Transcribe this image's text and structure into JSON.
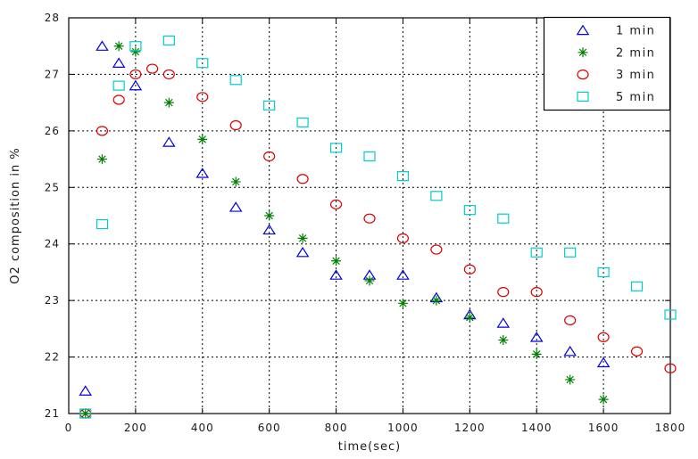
{
  "figure": {
    "background": "#ffffff",
    "border_color": "#000000",
    "grid_style": "dotted",
    "text_color": "#1a1a1a"
  },
  "chart_data": {
    "type": "scatter",
    "title": "",
    "xlabel": "time(sec)",
    "ylabel": "O2 composition in %",
    "xlim": [
      0,
      1800
    ],
    "ylim": [
      21,
      28
    ],
    "xticks": [
      0,
      200,
      400,
      600,
      800,
      1000,
      1200,
      1400,
      1600,
      1800
    ],
    "yticks": [
      21,
      22,
      23,
      24,
      25,
      26,
      27,
      28
    ],
    "grid": true,
    "legend": {
      "position": "top-right",
      "entries": [
        "1 min",
        "2 min",
        "3 min",
        "5 min"
      ]
    },
    "series": [
      {
        "name": "1 min",
        "marker": "triangle",
        "color": "#0000dd",
        "points": [
          [
            50,
            21.4
          ],
          [
            100,
            27.5
          ],
          [
            150,
            27.2
          ],
          [
            200,
            26.8
          ],
          [
            300,
            25.8
          ],
          [
            400,
            25.25
          ],
          [
            500,
            24.65
          ],
          [
            600,
            24.25
          ],
          [
            700,
            23.85
          ],
          [
            800,
            23.45
          ],
          [
            900,
            23.45
          ],
          [
            1000,
            23.45
          ],
          [
            1100,
            23.05
          ],
          [
            1200,
            22.75
          ],
          [
            1300,
            22.6
          ],
          [
            1400,
            22.35
          ],
          [
            1500,
            22.1
          ],
          [
            1600,
            21.9
          ]
        ]
      },
      {
        "name": "2 min",
        "marker": "asterisk",
        "color": "#008000",
        "points": [
          [
            50,
            21.0
          ],
          [
            100,
            25.5
          ],
          [
            150,
            27.5
          ],
          [
            200,
            27.4
          ],
          [
            300,
            26.5
          ],
          [
            400,
            25.85
          ],
          [
            500,
            25.1
          ],
          [
            600,
            24.5
          ],
          [
            700,
            24.1
          ],
          [
            800,
            23.7
          ],
          [
            900,
            23.35
          ],
          [
            1000,
            22.95
          ],
          [
            1100,
            23.0
          ],
          [
            1200,
            22.7
          ],
          [
            1300,
            22.3
          ],
          [
            1400,
            22.05
          ],
          [
            1500,
            21.6
          ],
          [
            1600,
            21.25
          ]
        ]
      },
      {
        "name": "3 min",
        "marker": "circle",
        "color": "#dd0000",
        "points": [
          [
            50,
            21.0
          ],
          [
            100,
            26.0
          ],
          [
            150,
            26.55
          ],
          [
            200,
            27.0
          ],
          [
            250,
            27.1
          ],
          [
            300,
            27.0
          ],
          [
            400,
            26.6
          ],
          [
            500,
            26.1
          ],
          [
            600,
            25.55
          ],
          [
            700,
            25.15
          ],
          [
            800,
            24.7
          ],
          [
            900,
            24.45
          ],
          [
            1000,
            24.1
          ],
          [
            1100,
            23.9
          ],
          [
            1200,
            23.55
          ],
          [
            1300,
            23.15
          ],
          [
            1400,
            23.15
          ],
          [
            1500,
            22.65
          ],
          [
            1600,
            22.35
          ],
          [
            1700,
            22.1
          ],
          [
            1800,
            21.8
          ]
        ]
      },
      {
        "name": "5 min",
        "marker": "square",
        "color": "#00cccc",
        "points": [
          [
            50,
            21.0
          ],
          [
            100,
            24.35
          ],
          [
            150,
            26.8
          ],
          [
            200,
            27.5
          ],
          [
            300,
            27.6
          ],
          [
            400,
            27.2
          ],
          [
            500,
            26.9
          ],
          [
            600,
            26.45
          ],
          [
            700,
            26.15
          ],
          [
            800,
            25.7
          ],
          [
            900,
            25.55
          ],
          [
            1000,
            25.2
          ],
          [
            1100,
            24.85
          ],
          [
            1200,
            24.6
          ],
          [
            1300,
            24.45
          ],
          [
            1400,
            23.85
          ],
          [
            1500,
            23.85
          ],
          [
            1600,
            23.5
          ],
          [
            1700,
            23.25
          ],
          [
            1800,
            22.75
          ]
        ]
      }
    ]
  }
}
